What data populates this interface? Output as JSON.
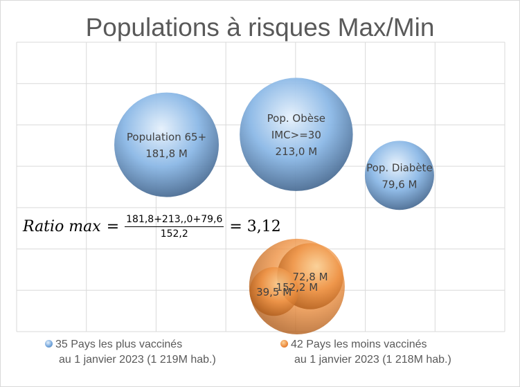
{
  "chart_data": {
    "type": "bubble",
    "title": "Populations à risques Max/Min",
    "xlim": [
      0,
      7
    ],
    "ylim": [
      0,
      7
    ],
    "grid": true,
    "series": [
      {
        "name": "35 Pays les plus vaccinés",
        "name_line2": "au 1 janvier 2023 (1 219M hab.)",
        "color": "#6fa3db",
        "points": [
          {
            "x": 2.15,
            "y": 4.52,
            "size": 181.8,
            "label": [
              "Population 65+",
              "181,8 M"
            ]
          },
          {
            "x": 4.01,
            "y": 4.77,
            "size": 213.0,
            "label": [
              "Pop. Obèse",
              "IMC>=30",
              "213,0 M"
            ]
          },
          {
            "x": 5.49,
            "y": 3.78,
            "size": 79.6,
            "label": [
              "Pop. Diabète",
              "79,6 M"
            ]
          }
        ]
      },
      {
        "name": "42 Pays les moins vaccinés",
        "name_line2": "au 1 janvier 2023 (1 218M hab.)",
        "color": "#ed8a3c",
        "points": [
          {
            "x": 4.02,
            "y": 1.09,
            "size": 152.2,
            "label": [
              "152,2 M"
            ]
          },
          {
            "x": 4.21,
            "y": 1.34,
            "size": 72.8,
            "label": [
              "72,8 M"
            ]
          },
          {
            "x": 3.69,
            "y": 0.97,
            "size": 39.5,
            "label": [
              "39,5 M"
            ]
          }
        ]
      }
    ],
    "legend": "bottom"
  },
  "formula": {
    "lhs": "Ratio max",
    "eq": "=",
    "numerator": "181,8+213,,0+79,6",
    "denominator": "152,2",
    "result": "= 3,12"
  }
}
